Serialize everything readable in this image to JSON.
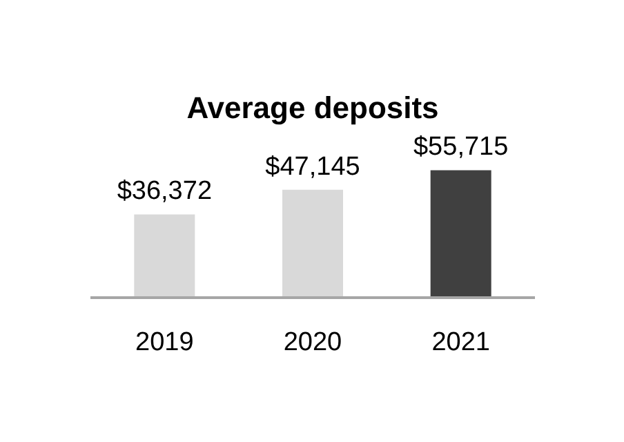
{
  "chart_data": {
    "type": "bar",
    "title": "Average deposits",
    "categories": [
      "2019",
      "2020",
      "2021"
    ],
    "values": [
      36372,
      47145,
      55715
    ],
    "colors": [
      "#d9d9d9",
      "#d9d9d9",
      "#404040"
    ],
    "value_labels": [
      "$36,372",
      "$47,145",
      "$55,715"
    ],
    "tick_labels": "x",
    "grid": false
  }
}
